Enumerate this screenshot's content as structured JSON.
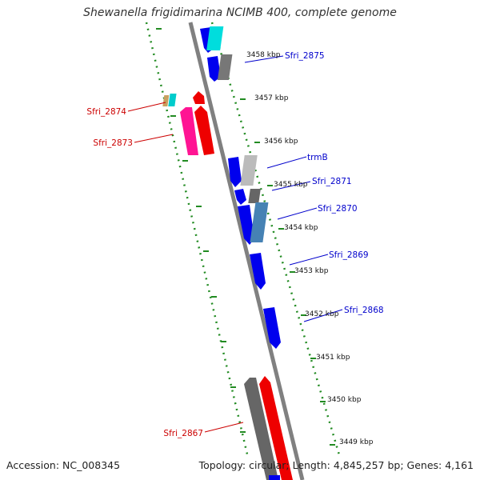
{
  "title": "Shewanella frigidimarina NCIMB 400, complete genome",
  "footer": {
    "accession": "Accession: NC_008345",
    "summary": "Topology: circular; Length: 4,845,257 bp; Genes: 4,161"
  },
  "scale_labels": [
    "3458 kbp",
    "3457 kbp",
    "3456 kbp",
    "3455 kbp",
    "3454 kbp",
    "3453 kbp",
    "3452 kbp",
    "3451 kbp",
    "3450 kbp",
    "3449 kbp"
  ],
  "gene_labels_right": [
    "Sfri_2875",
    "trmB",
    "Sfri_2871",
    "Sfri_2870",
    "Sfri_2869",
    "Sfri_2868"
  ],
  "gene_labels_left": [
    "Sfri_2874",
    "Sfri_2873",
    "Sfri_2867"
  ],
  "colors": {
    "forward_label": "#0000cc",
    "reverse_label": "#cc0000",
    "scale": "#228b22",
    "backbone": "#808080"
  }
}
